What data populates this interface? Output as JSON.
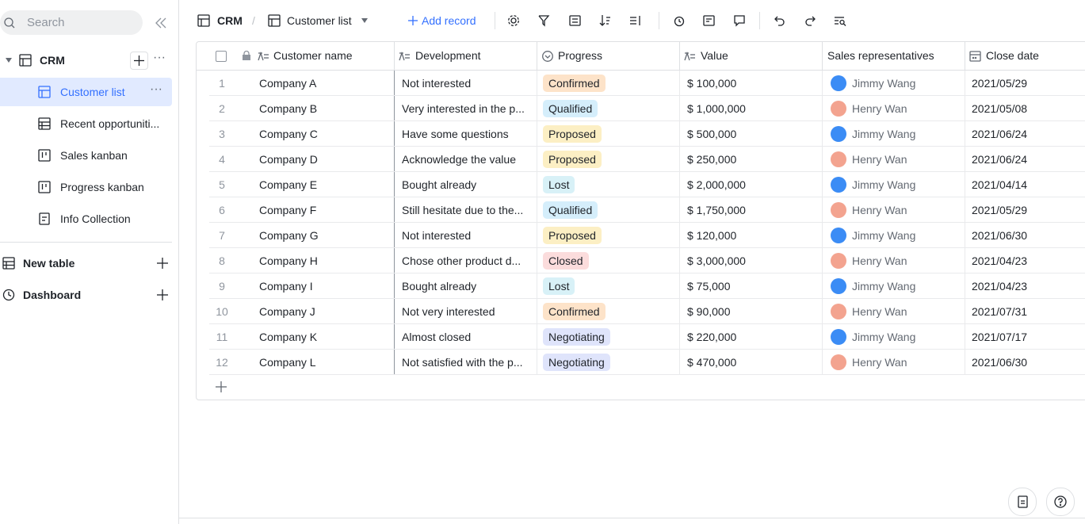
{
  "sidebar": {
    "search": "Search",
    "base": "CRM",
    "views": [
      "Customer list",
      "Recent opportuniti...",
      "Sales kanban",
      "Progress kanban",
      "Info Collection"
    ],
    "sections": [
      "New table",
      "Dashboard"
    ]
  },
  "toolbar": {
    "base": "CRM",
    "view": "Customer list",
    "add_record": "Add record"
  },
  "table": {
    "columns": [
      "Customer name",
      "Development",
      "Progress",
      "Value",
      "Sales representatives",
      "Close date"
    ],
    "rows": [
      {
        "no": 1,
        "customer": "Company A",
        "development": "Not interested",
        "progress": "Confirmed",
        "progress_color": "#fde3c9",
        "value": "$ 100,000",
        "rep": "Jimmy Wang",
        "rep_color": "#3b8cf5",
        "close_date": "2021/05/29"
      },
      {
        "no": 2,
        "customer": "Company B",
        "development": "Very interested in the p...",
        "progress": "Qualified",
        "progress_color": "#d5eefb",
        "value": "$ 1,000,000",
        "rep": "Henry Wan",
        "rep_color": "#f3a38f",
        "close_date": "2021/05/08"
      },
      {
        "no": 3,
        "customer": "Company C",
        "development": "Have some questions",
        "progress": "Proposed",
        "progress_color": "#fcefc4",
        "value": "$ 500,000",
        "rep": "Jimmy Wang",
        "rep_color": "#3b8cf5",
        "close_date": "2021/06/24"
      },
      {
        "no": 4,
        "customer": "Company D",
        "development": "Acknowledge the value",
        "progress": "Proposed",
        "progress_color": "#fcefc4",
        "value": "$ 250,000",
        "rep": "Henry Wan",
        "rep_color": "#f3a38f",
        "close_date": "2021/06/24"
      },
      {
        "no": 5,
        "customer": "Company E",
        "development": "Bought already",
        "progress": "Lost",
        "progress_color": "#d8f1f7",
        "value": "$ 2,000,000",
        "rep": "Jimmy Wang",
        "rep_color": "#3b8cf5",
        "close_date": "2021/04/14"
      },
      {
        "no": 6,
        "customer": "Company F",
        "development": "Still hesitate due to the...",
        "progress": "Qualified",
        "progress_color": "#d5eefb",
        "value": "$ 1,750,000",
        "rep": "Henry Wan",
        "rep_color": "#f3a38f",
        "close_date": "2021/05/29"
      },
      {
        "no": 7,
        "customer": "Company G",
        "development": "Not interested",
        "progress": "Proposed",
        "progress_color": "#fcefc4",
        "value": "$ 120,000",
        "rep": "Jimmy Wang",
        "rep_color": "#3b8cf5",
        "close_date": "2021/06/30"
      },
      {
        "no": 8,
        "customer": "Company H",
        "development": "Chose other product d...",
        "progress": "Closed",
        "progress_color": "#fbdcdc",
        "value": "$ 3,000,000",
        "rep": "Henry Wan",
        "rep_color": "#f3a38f",
        "close_date": "2021/04/23"
      },
      {
        "no": 9,
        "customer": "Company I",
        "development": "Bought already",
        "progress": "Lost",
        "progress_color": "#d8f1f7",
        "value": "$ 75,000",
        "rep": "Jimmy Wang",
        "rep_color": "#3b8cf5",
        "close_date": "2021/04/23"
      },
      {
        "no": 10,
        "customer": "Company J",
        "development": "Not very interested",
        "progress": "Confirmed",
        "progress_color": "#fde3c9",
        "value": "$ 90,000",
        "rep": "Henry Wan",
        "rep_color": "#f3a38f",
        "close_date": "2021/07/31"
      },
      {
        "no": 11,
        "customer": "Company K",
        "development": "Almost closed",
        "progress": "Negotiating",
        "progress_color": "#dfe4fb",
        "value": "$ 220,000",
        "rep": "Jimmy Wang",
        "rep_color": "#3b8cf5",
        "close_date": "2021/07/17"
      },
      {
        "no": 12,
        "customer": "Company L",
        "development": "Not satisfied with the p...",
        "progress": "Negotiating",
        "progress_color": "#dfe4fb",
        "value": "$ 470,000",
        "rep": "Henry Wan",
        "rep_color": "#f3a38f",
        "close_date": "2021/06/30"
      }
    ]
  }
}
